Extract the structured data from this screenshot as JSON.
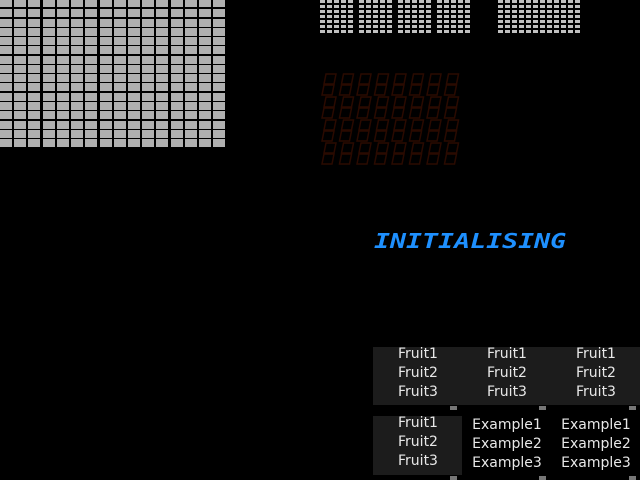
{
  "display": {
    "message": "INITIALISING",
    "message_color": "#1e90ff",
    "segment_off_color": "#0c2238",
    "seven_seg_off_color": "#2a0a00",
    "lamp_color": "#b0b0b0"
  },
  "reels_top": {
    "items": [
      "Fruit1",
      "Fruit2",
      "Fruit3"
    ],
    "reels": [
      {
        "items": [
          "Fruit1",
          "Fruit2",
          "Fruit3"
        ]
      },
      {
        "items": [
          "Fruit1",
          "Fruit2",
          "Fruit3"
        ]
      },
      {
        "items": [
          "Fruit1",
          "Fruit2",
          "Fruit3"
        ]
      }
    ]
  },
  "reels_bottom": {
    "reels": [
      {
        "items": [
          "Fruit1",
          "Fruit2",
          "Fruit3"
        ]
      },
      {
        "items": [
          "Example1",
          "Example2",
          "Example3"
        ]
      },
      {
        "items": [
          "Example1",
          "Example2",
          "Example3"
        ]
      }
    ]
  }
}
